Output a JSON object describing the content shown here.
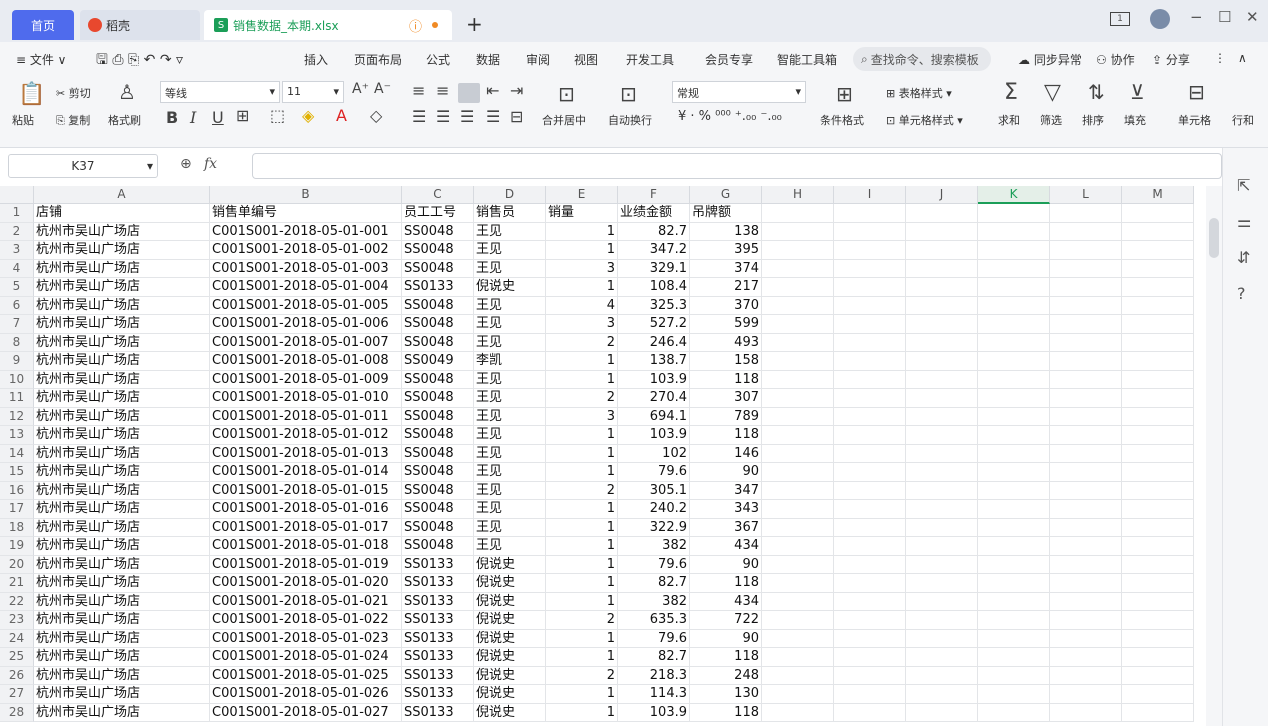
{
  "tabs": {
    "home": "首页",
    "docer": "稻壳",
    "file": "销售数据_本期.xlsx",
    "add": "+"
  },
  "window": {
    "page_count": "1",
    "minimize": "−",
    "maximize": "☐",
    "close": "✕"
  },
  "menu": {
    "file": "≡ 文件 ∨",
    "items": [
      "插入",
      "页面布局",
      "公式",
      "数据",
      "审阅",
      "视图",
      "开发工具",
      "会员专享",
      "智能工具箱"
    ],
    "search_placeholder": "查找命令、搜索模板",
    "sync": "同步异常",
    "collab": "协作",
    "share": "分享"
  },
  "ribbon": {
    "paste": "粘贴",
    "cut": "剪切",
    "copy": "复制",
    "format_painter": "格式刷",
    "font_name": "等线",
    "font_size": "11",
    "merge_center": "合并居中",
    "wrap_text": "自动换行",
    "number_format": "常规",
    "cond_format": "条件格式",
    "table_style": "表格样式",
    "cell_style": "单元格样式",
    "sum": "求和",
    "filter": "筛选",
    "sort": "排序",
    "fill": "填充",
    "cell": "单元格",
    "row_col": "行和"
  },
  "formula_bar": {
    "name_box": "K37",
    "fx": "fx",
    "formula": ""
  },
  "sheet": {
    "columns": [
      "A",
      "B",
      "C",
      "D",
      "E",
      "F",
      "G",
      "H",
      "I",
      "J",
      "K",
      "L",
      "M"
    ],
    "active_column": "K",
    "rows": [
      [
        "店铺",
        "销售单编号",
        "员工工号",
        "销售员",
        "销量",
        "业绩金额",
        "吊牌额"
      ],
      [
        "杭州市吴山广场店",
        "C001S001-2018-05-01-001",
        "SS0048",
        "王见",
        "1",
        "82.7",
        "138"
      ],
      [
        "杭州市吴山广场店",
        "C001S001-2018-05-01-002",
        "SS0048",
        "王见",
        "1",
        "347.2",
        "395"
      ],
      [
        "杭州市吴山广场店",
        "C001S001-2018-05-01-003",
        "SS0048",
        "王见",
        "3",
        "329.1",
        "374"
      ],
      [
        "杭州市吴山广场店",
        "C001S001-2018-05-01-004",
        "SS0133",
        "倪说史",
        "1",
        "108.4",
        "217"
      ],
      [
        "杭州市吴山广场店",
        "C001S001-2018-05-01-005",
        "SS0048",
        "王见",
        "4",
        "325.3",
        "370"
      ],
      [
        "杭州市吴山广场店",
        "C001S001-2018-05-01-006",
        "SS0048",
        "王见",
        "3",
        "527.2",
        "599"
      ],
      [
        "杭州市吴山广场店",
        "C001S001-2018-05-01-007",
        "SS0048",
        "王见",
        "2",
        "246.4",
        "493"
      ],
      [
        "杭州市吴山广场店",
        "C001S001-2018-05-01-008",
        "SS0049",
        "李凯",
        "1",
        "138.7",
        "158"
      ],
      [
        "杭州市吴山广场店",
        "C001S001-2018-05-01-009",
        "SS0048",
        "王见",
        "1",
        "103.9",
        "118"
      ],
      [
        "杭州市吴山广场店",
        "C001S001-2018-05-01-010",
        "SS0048",
        "王见",
        "2",
        "270.4",
        "307"
      ],
      [
        "杭州市吴山广场店",
        "C001S001-2018-05-01-011",
        "SS0048",
        "王见",
        "3",
        "694.1",
        "789"
      ],
      [
        "杭州市吴山广场店",
        "C001S001-2018-05-01-012",
        "SS0048",
        "王见",
        "1",
        "103.9",
        "118"
      ],
      [
        "杭州市吴山广场店",
        "C001S001-2018-05-01-013",
        "SS0048",
        "王见",
        "1",
        "102",
        "146"
      ],
      [
        "杭州市吴山广场店",
        "C001S001-2018-05-01-014",
        "SS0048",
        "王见",
        "1",
        "79.6",
        "90"
      ],
      [
        "杭州市吴山广场店",
        "C001S001-2018-05-01-015",
        "SS0048",
        "王见",
        "2",
        "305.1",
        "347"
      ],
      [
        "杭州市吴山广场店",
        "C001S001-2018-05-01-016",
        "SS0048",
        "王见",
        "1",
        "240.2",
        "343"
      ],
      [
        "杭州市吴山广场店",
        "C001S001-2018-05-01-017",
        "SS0048",
        "王见",
        "1",
        "322.9",
        "367"
      ],
      [
        "杭州市吴山广场店",
        "C001S001-2018-05-01-018",
        "SS0048",
        "王见",
        "1",
        "382",
        "434"
      ],
      [
        "杭州市吴山广场店",
        "C001S001-2018-05-01-019",
        "SS0133",
        "倪说史",
        "1",
        "79.6",
        "90"
      ],
      [
        "杭州市吴山广场店",
        "C001S001-2018-05-01-020",
        "SS0133",
        "倪说史",
        "1",
        "82.7",
        "118"
      ],
      [
        "杭州市吴山广场店",
        "C001S001-2018-05-01-021",
        "SS0133",
        "倪说史",
        "1",
        "382",
        "434"
      ],
      [
        "杭州市吴山广场店",
        "C001S001-2018-05-01-022",
        "SS0133",
        "倪说史",
        "2",
        "635.3",
        "722"
      ],
      [
        "杭州市吴山广场店",
        "C001S001-2018-05-01-023",
        "SS0133",
        "倪说史",
        "1",
        "79.6",
        "90"
      ],
      [
        "杭州市吴山广场店",
        "C001S001-2018-05-01-024",
        "SS0133",
        "倪说史",
        "1",
        "82.7",
        "118"
      ],
      [
        "杭州市吴山广场店",
        "C001S001-2018-05-01-025",
        "SS0133",
        "倪说史",
        "2",
        "218.3",
        "248"
      ],
      [
        "杭州市吴山广场店",
        "C001S001-2018-05-01-026",
        "SS0133",
        "倪说史",
        "1",
        "114.3",
        "130"
      ],
      [
        "杭州市吴山广场店",
        "C001S001-2018-05-01-027",
        "SS0133",
        "倪说史",
        "1",
        "103.9",
        "118"
      ]
    ]
  },
  "colors": {
    "accent": "#4f6bed",
    "sheet_green": "#1b9e58",
    "warning": "#f08a24"
  }
}
